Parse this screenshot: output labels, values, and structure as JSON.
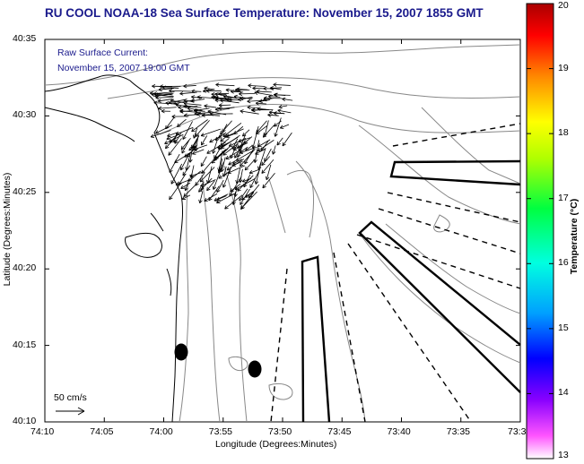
{
  "title": "RU COOL  NOAA-18  Sea Surface Temperature:  November 15, 2007 1855 GMT",
  "overlay": {
    "line1": "Raw Surface Current:",
    "line2": "November 15, 2007 19:00 GMT",
    "scale_label": "50 cm/s"
  },
  "axes": {
    "xlabel": "Longitude (Degrees:Minutes)",
    "ylabel": "Latitude (Degrees:Minutes)",
    "xticks": [
      "74:10",
      "74:05",
      "74:00",
      "73:55",
      "73:50",
      "73:45",
      "73:40",
      "73:35",
      "73:3"
    ],
    "yticks": [
      "40:35",
      "40:30",
      "40:25",
      "40:20",
      "40:15",
      "40:10"
    ]
  },
  "colorbar": {
    "label": "Temperature (°C)",
    "ticks": [
      "20",
      "19",
      "18",
      "17",
      "16",
      "15",
      "14",
      "13"
    ],
    "min": 13,
    "max": 20
  },
  "colors": {
    "title": "#1a1a8c",
    "contour": "#888888",
    "coast": "#000000"
  }
}
